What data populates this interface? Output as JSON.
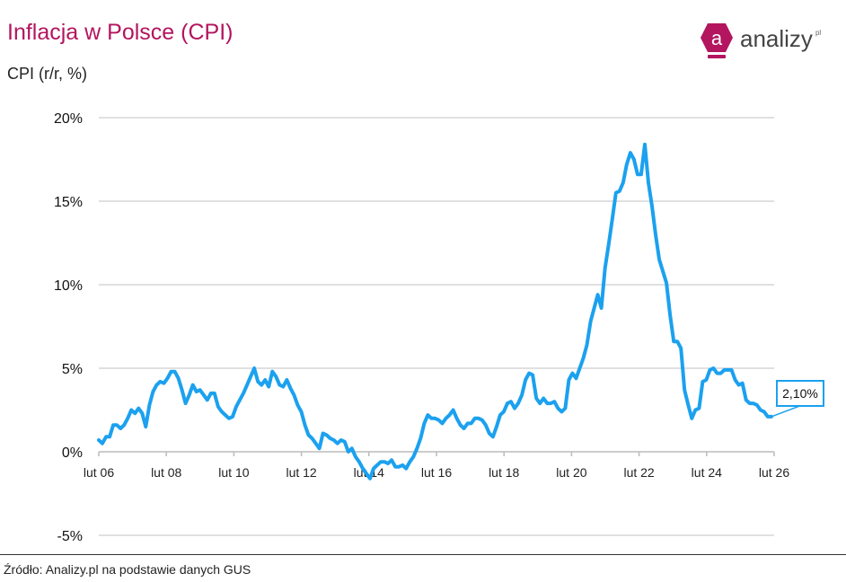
{
  "chart_data": {
    "type": "line",
    "title": "Inflacja w Polsce (CPI)",
    "ylabel": "CPI (r/r, %)",
    "xlabel": "",
    "ylim": [
      -5,
      20
    ],
    "yticks": [
      -5,
      0,
      5,
      10,
      15,
      20
    ],
    "ytick_labels": [
      "-5%",
      "0%",
      "5%",
      "10%",
      "15%",
      "20%"
    ],
    "xticks": [
      2006.083,
      2008.083,
      2010.083,
      2012.083,
      2014.083,
      2016.083,
      2018.083,
      2020.083,
      2022.083,
      2024.083,
      2026.083
    ],
    "xtick_labels": [
      "lut 06",
      "lut 08",
      "lut 10",
      "lut 12",
      "lut 14",
      "lut 16",
      "lut 18",
      "lut 20",
      "lut 22",
      "lut 24",
      "lut 26"
    ],
    "xlim": [
      2006.083,
      2026.083
    ],
    "grid": true,
    "series": [
      {
        "name": "CPI r/r",
        "color": "#1ba1ef",
        "x_start": 2006.083,
        "x_end": 2026.0,
        "values": [
          0.7,
          0.5,
          0.9,
          0.9,
          1.6,
          1.6,
          1.4,
          1.6,
          2.0,
          2.5,
          2.3,
          2.6,
          2.3,
          1.5,
          2.8,
          3.6,
          4.0,
          4.2,
          4.1,
          4.4,
          4.8,
          4.8,
          4.4,
          3.7,
          2.9,
          3.4,
          4.0,
          3.6,
          3.7,
          3.4,
          3.1,
          3.5,
          3.5,
          2.7,
          2.4,
          2.2,
          2.0,
          2.1,
          2.7,
          3.1,
          3.5,
          4.0,
          4.5,
          5.0,
          4.2,
          4.0,
          4.3,
          3.9,
          4.8,
          4.5,
          4.0,
          3.9,
          4.3,
          3.8,
          3.4,
          2.8,
          2.4,
          1.6,
          1.0,
          0.8,
          0.5,
          0.2,
          1.1,
          1.0,
          0.8,
          0.7,
          0.5,
          0.7,
          0.6,
          0.0,
          0.2,
          -0.3,
          -0.6,
          -1.0,
          -1.3,
          -1.6,
          -1.0,
          -0.8,
          -0.6,
          -0.6,
          -0.7,
          -0.5,
          -0.9,
          -0.9,
          -0.8,
          -1.0,
          -0.6,
          -0.3,
          0.2,
          0.8,
          1.7,
          2.2,
          2.0,
          2.0,
          1.9,
          1.7,
          2.0,
          2.2,
          2.5,
          2.0,
          1.6,
          1.4,
          1.7,
          1.7,
          2.0,
          2.0,
          1.9,
          1.6,
          1.1,
          0.9,
          1.5,
          2.2,
          2.4,
          2.9,
          3.0,
          2.6,
          2.9,
          3.4,
          4.3,
          4.7,
          4.6,
          3.2,
          2.9,
          3.2,
          2.9,
          2.9,
          3.0,
          2.6,
          2.4,
          2.6,
          4.3,
          4.7,
          4.4,
          5.0,
          5.6,
          6.4,
          7.8,
          8.6,
          9.4,
          8.6,
          11.0,
          12.4,
          13.9,
          15.5,
          15.6,
          16.1,
          17.2,
          17.9,
          17.5,
          16.6,
          16.6,
          18.4,
          16.1,
          14.7,
          13.0,
          11.5,
          10.8,
          10.1,
          8.2,
          6.6,
          6.6,
          6.2,
          3.7,
          2.8,
          2.0,
          2.5,
          2.6,
          4.2,
          4.3,
          4.9,
          5.0,
          4.7,
          4.7,
          4.9,
          4.9,
          4.9,
          4.3,
          4.0,
          4.1,
          3.1,
          2.9,
          2.9,
          2.8,
          2.5,
          2.4,
          2.1,
          2.1
        ]
      }
    ],
    "annotation": {
      "label": "2,10%",
      "value": 2.1
    }
  },
  "source": "Źródło: Analizy.pl na podstawie danych GUS",
  "logo": {
    "text": "analizy",
    "suffix": "pl",
    "color": "#b3155f"
  }
}
